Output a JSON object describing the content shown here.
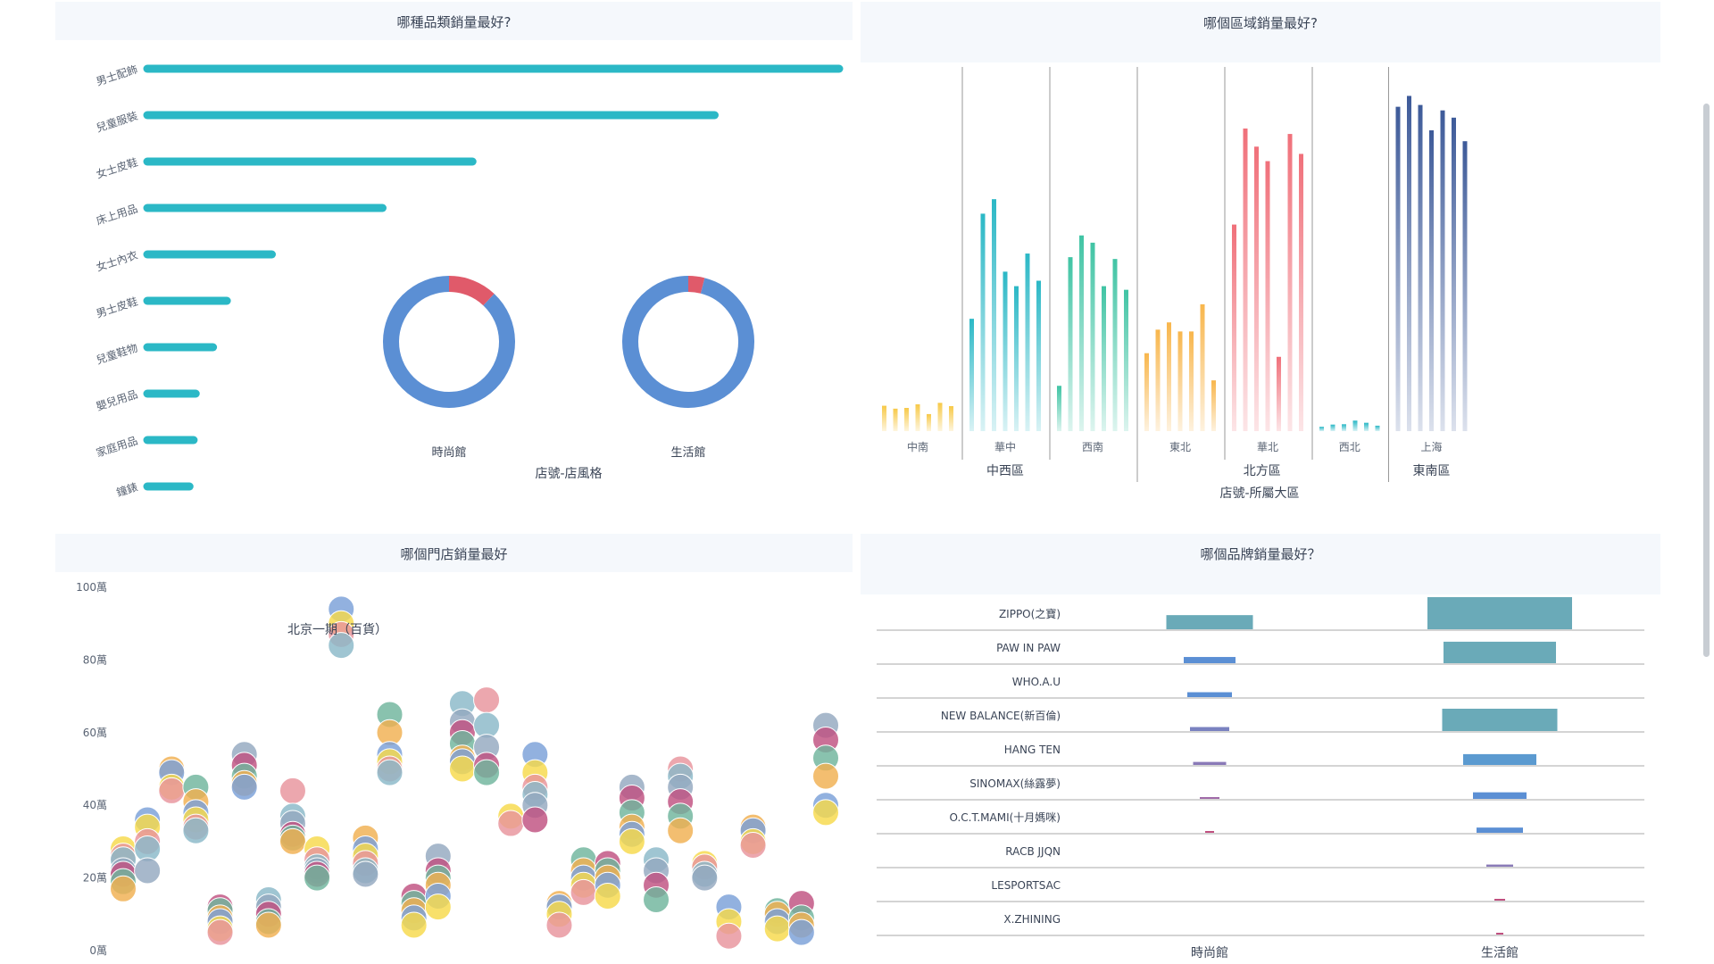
{
  "panels": {
    "category": {
      "title": "哪種品類銷量最好?"
    },
    "region": {
      "title": "哪個區域銷量最好?"
    },
    "store": {
      "title": "哪個門店銷量最好"
    },
    "brand": {
      "title": "哪個品牌銷量最好？"
    }
  },
  "colors": {
    "teal": "#2bb8c6",
    "blue": "#5b8fd4",
    "red": "#e05a6a",
    "yellow": "#f7c948",
    "green": "#40c4a4",
    "orange": "#f8b64c",
    "coral": "#f0707a",
    "navy": "#3d5a99",
    "brand_teal": "#6aaab8",
    "purple": "#8a7ab8",
    "magenta": "#c05080"
  },
  "chart_data": [
    {
      "id": "category_bar",
      "type": "bar",
      "orientation": "horizontal",
      "categories": [
        "男士配飾",
        "兒童服裝",
        "女士皮鞋",
        "床上用品",
        "女士內衣",
        "男士皮鞋",
        "兒童鞋物",
        "嬰兒用品",
        "家庭用品",
        "鐘錶"
      ],
      "values": [
        100,
        82,
        47,
        34,
        18,
        11.5,
        9.5,
        7,
        6.7,
        6.1
      ]
    },
    {
      "id": "store_style_donut",
      "type": "pie",
      "xlabel": "店號-店風格",
      "donuts": [
        {
          "label": "時尚館",
          "slices": [
            0.88,
            0.12
          ]
        },
        {
          "label": "生活館",
          "slices": [
            0.96,
            0.04
          ]
        }
      ]
    },
    {
      "id": "region_bar",
      "type": "bar",
      "xlabel": "店號-所屬大區",
      "groups": [
        {
          "label": "中西區",
          "subgroups": [
            {
              "label": "中南",
              "color": "yellow",
              "values": [
                7,
                6.2,
                6.4,
                7.4,
                4.7,
                7.8,
                6.9
              ]
            },
            {
              "label": "華中",
              "color": "teal",
              "values": [
                31,
                60,
                64,
                44,
                40,
                49,
                41.5
              ]
            },
            {
              "label": "西南",
              "color": "green",
              "values": [
                12.5,
                48,
                54,
                52,
                40,
                47.5,
                39
              ]
            }
          ]
        },
        {
          "label": "北方區",
          "subgroups": [
            {
              "label": "東北",
              "color": "orange",
              "values": [
                21.5,
                28,
                30,
                27.5,
                27.5,
                35,
                14
              ]
            },
            {
              "label": "華北",
              "color": "coral",
              "values": [
                57,
                83.5,
                78.5,
                74.5,
                20.5,
                82,
                76.5
              ]
            },
            {
              "label": "西北",
              "color": "teal",
              "values": [
                1.2,
                1.8,
                1.9,
                2.9,
                2.3,
                1.5
              ]
            }
          ]
        },
        {
          "label": "東南區",
          "subgroups": [
            {
              "label": "上海",
              "color": "navy",
              "values": [
                89.5,
                92.5,
                90,
                83,
                88.5,
                86.5,
                80
              ]
            }
          ]
        }
      ]
    },
    {
      "id": "store_scatter",
      "type": "scatter",
      "ylim": [
        0,
        100
      ],
      "yticks": [
        "0萬",
        "20萬",
        "40萬",
        "60萬",
        "80萬",
        "100萬"
      ],
      "annotation": "北京一期（百貨）",
      "columns": [
        [
          28,
          26,
          25,
          22,
          21,
          19,
          17
        ],
        [
          36,
          34,
          30,
          28,
          22
        ],
        [
          50,
          49,
          45,
          44
        ],
        [
          45,
          41,
          38,
          36,
          34,
          33
        ],
        [
          12,
          11,
          9,
          8,
          6,
          5
        ],
        [
          54,
          51,
          48,
          46,
          45
        ],
        [
          14,
          12,
          10,
          8,
          7
        ],
        [
          44,
          37,
          35,
          32,
          31,
          30
        ],
        [
          28,
          25,
          23,
          22,
          21,
          20
        ],
        [
          94,
          90,
          87,
          84
        ],
        [
          31,
          28,
          26,
          24,
          22,
          21
        ],
        [
          65,
          60,
          54,
          52,
          50,
          49
        ],
        [
          15,
          13,
          11,
          9,
          7
        ],
        [
          26,
          22,
          20,
          18,
          15,
          12
        ],
        [
          68,
          63,
          60,
          57,
          53,
          52,
          50
        ],
        [
          69,
          62,
          56,
          51,
          49
        ],
        [
          37,
          35
        ],
        [
          54,
          49,
          45,
          43,
          40,
          36
        ],
        [
          13,
          12,
          10,
          7
        ],
        [
          25,
          22,
          20,
          18,
          16
        ],
        [
          24,
          22,
          20,
          18,
          15
        ],
        [
          45,
          42,
          38,
          34,
          32,
          30
        ],
        [
          25,
          22,
          18,
          14
        ],
        [
          50,
          48,
          45,
          41,
          37,
          33
        ],
        [
          24,
          23,
          21,
          20
        ],
        [
          12,
          8,
          4
        ],
        [
          34,
          33,
          30,
          29
        ],
        [
          11,
          10,
          8,
          6
        ],
        [
          13,
          9,
          7,
          5
        ],
        [
          62,
          58,
          53,
          48,
          40,
          38
        ]
      ]
    },
    {
      "id": "brand_bar",
      "type": "bar",
      "orientation": "horizontal",
      "categories": [
        "ZIPPO(之寶)",
        "PAW IN PAW",
        "WHO.A.U",
        "NEW BALANCE(新百倫)",
        "HANG TEN",
        "SINOMAX(絲露夢)",
        "O.C.T.MAMI(十月媽咪)",
        "RACB JJQN",
        "LESPORTSAC",
        "X.ZHINING"
      ],
      "series": [
        {
          "name": "時尚館",
          "values": [
            97,
            58,
            50,
            44,
            37,
            22,
            10,
            0,
            0,
            0
          ]
        },
        {
          "name": "生活館",
          "values": [
            162,
            126,
            0,
            129,
            82,
            60,
            52,
            30,
            12,
            8
          ]
        }
      ]
    }
  ]
}
